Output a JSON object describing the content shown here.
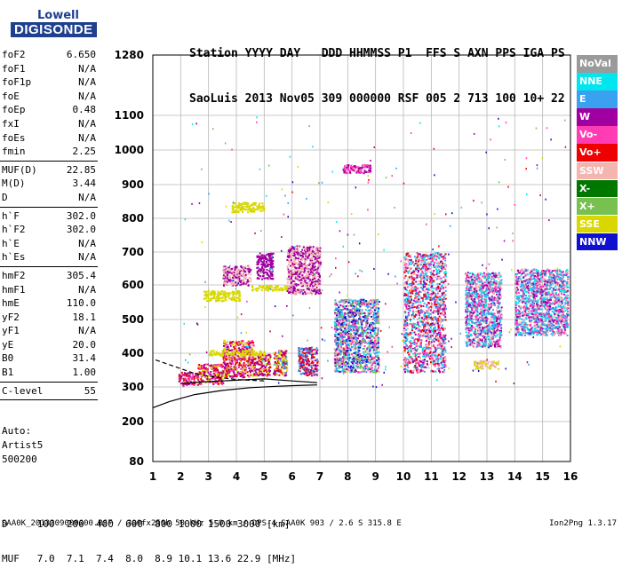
{
  "logo": {
    "top": "Lowell",
    "bottom": "DIGISONDE"
  },
  "header": {
    "line1": "Station YYYY DAY   DDD HHMMSS P1  FFS S AXN PPS IGA PS",
    "line2": "SaoLuis 2013 Nov05 309 000000 RSF 005 2 713 100 10+ 22"
  },
  "params": [
    {
      "name": "foF2",
      "value": "6.650"
    },
    {
      "name": "foF1",
      "value": "N/A"
    },
    {
      "name": "foF1p",
      "value": "N/A"
    },
    {
      "name": "foE",
      "value": "N/A"
    },
    {
      "name": "foEp",
      "value": "0.48"
    },
    {
      "name": "fxI",
      "value": "N/A"
    },
    {
      "name": "foEs",
      "value": "N/A"
    },
    {
      "name": "fmin",
      "value": "2.25"
    },
    {
      "sep": true
    },
    {
      "name": "MUF(D)",
      "value": "22.85"
    },
    {
      "name": "M(D)",
      "value": "3.44"
    },
    {
      "name": "D",
      "value": "N/A"
    },
    {
      "sep": true
    },
    {
      "name": "h`F",
      "value": "302.0"
    },
    {
      "name": "h`F2",
      "value": "302.0"
    },
    {
      "name": "h`E",
      "value": "N/A"
    },
    {
      "name": "h`Es",
      "value": "N/A"
    },
    {
      "sep": true
    },
    {
      "name": "hmF2",
      "value": "305.4"
    },
    {
      "name": "hmF1",
      "value": "N/A"
    },
    {
      "name": "hmE",
      "value": "110.0"
    },
    {
      "name": "yF2",
      "value": "18.1"
    },
    {
      "name": "yF1",
      "value": "N/A"
    },
    {
      "name": "yE",
      "value": "20.0"
    },
    {
      "name": "B0",
      "value": "31.4"
    },
    {
      "name": "B1",
      "value": "1.00"
    },
    {
      "sep": true
    },
    {
      "name": "C-level",
      "value": "55"
    },
    {
      "sep": true
    }
  ],
  "auto": {
    "line1": "Auto:",
    "line2": "Artist5",
    "line3": "500200"
  },
  "legend": [
    {
      "label": "NoVal",
      "color": "#9a9a9a"
    },
    {
      "label": "NNE",
      "color": "#00e5ee"
    },
    {
      "label": "E",
      "color": "#3aa0f0"
    },
    {
      "label": "W",
      "color": "#a000a0"
    },
    {
      "label": "Vo-",
      "color": "#ff3cb4"
    },
    {
      "label": "Vo+",
      "color": "#ee0000"
    },
    {
      "label": "SSW",
      "color": "#f4b4b0"
    },
    {
      "label": "X-",
      "color": "#007800"
    },
    {
      "label": "X+",
      "color": "#78c050"
    },
    {
      "label": "SSE",
      "color": "#d8d800"
    },
    {
      "label": "NNW",
      "color": "#1010d0"
    }
  ],
  "dmuf": {
    "d_line": "D     100  200  400  600  800 1000 1500 3000 [km]",
    "muf_line": "MUF   7.0  7.1  7.4  8.0  8.9 10.1 13.6 22.9 [MHz]"
  },
  "footer": {
    "left": "SAA0K_2013309000000.RSF / 300fx256h 50 kHz 5.0 km / DPS-4 SAA0K 903 / 2.6 S 315.8 E",
    "right": "Ion2Png 1.3.17"
  },
  "chart_data": {
    "type": "scatter",
    "title": "",
    "xlabel": "",
    "ylabel": "",
    "xlim": [
      1,
      16
    ],
    "ylim": [
      80,
      1280
    ],
    "y_scale": "virtual-height (non-linear)",
    "xticks": [
      1,
      2,
      3,
      4,
      5,
      6,
      7,
      8,
      9,
      10,
      11,
      12,
      13,
      14,
      15,
      16
    ],
    "yticks": [
      80,
      200,
      300,
      400,
      500,
      600,
      700,
      800,
      900,
      1000,
      1100,
      1280
    ],
    "grid": true,
    "legend_position": "right",
    "clusters": [
      {
        "x": [
          1.9,
          2.6
        ],
        "y": [
          305,
          345
        ],
        "colors": [
          "Vo+",
          "Vo-",
          "W"
        ]
      },
      {
        "x": [
          2.6,
          3.5
        ],
        "y": [
          310,
          370
        ],
        "colors": [
          "Vo+",
          "Vo-",
          "SSE",
          "W"
        ]
      },
      {
        "x": [
          3.5,
          4.6
        ],
        "y": [
          330,
          440
        ],
        "colors": [
          "W",
          "Vo+",
          "SSE",
          "Vo-"
        ]
      },
      {
        "x": [
          4.6,
          5.2
        ],
        "y": [
          335,
          400
        ],
        "colors": [
          "Vo+",
          "SSE",
          "W"
        ]
      },
      {
        "x": [
          5.3,
          5.8
        ],
        "y": [
          335,
          410
        ],
        "colors": [
          "Vo+",
          "E",
          "W",
          "SSE"
        ]
      },
      {
        "x": [
          6.2,
          6.9
        ],
        "y": [
          335,
          420
        ],
        "colors": [
          "Vo+",
          "E",
          "W"
        ]
      },
      {
        "x": [
          7.5,
          9.1
        ],
        "y": [
          345,
          560
        ],
        "colors": [
          "W",
          "E",
          "NNE",
          "Vo-",
          "X+",
          "SSW",
          "NNW"
        ]
      },
      {
        "x": [
          10.0,
          11.5
        ],
        "y": [
          345,
          700
        ],
        "colors": [
          "Vo-",
          "W",
          "E",
          "Vo+",
          "NNE",
          "SSW"
        ]
      },
      {
        "x": [
          12.2,
          13.5
        ],
        "y": [
          420,
          640
        ],
        "colors": [
          "Vo-",
          "W",
          "E",
          "NNE",
          "SSW"
        ]
      },
      {
        "x": [
          14.0,
          15.9
        ],
        "y": [
          455,
          650
        ],
        "colors": [
          "Vo-",
          "NNE",
          "E",
          "SSW",
          "W"
        ]
      },
      {
        "x": [
          2.8,
          4.1
        ],
        "y": [
          555,
          585
        ],
        "colors": [
          "SSE"
        ]
      },
      {
        "x": [
          4.5,
          5.9
        ],
        "y": [
          585,
          600
        ],
        "colors": [
          "SSE"
        ]
      },
      {
        "x": [
          3.0,
          5.0
        ],
        "y": [
          395,
          410
        ],
        "colors": [
          "SSE"
        ]
      },
      {
        "x": [
          3.5,
          4.5
        ],
        "y": [
          600,
          660
        ],
        "colors": [
          "W",
          "SSW"
        ]
      },
      {
        "x": [
          4.7,
          5.3
        ],
        "y": [
          620,
          700
        ],
        "colors": [
          "W"
        ]
      },
      {
        "x": [
          3.8,
          5.0
        ],
        "y": [
          820,
          850
        ],
        "colors": [
          "SSE"
        ]
      },
      {
        "x": [
          5.8,
          7.0
        ],
        "y": [
          575,
          720
        ],
        "colors": [
          "W",
          "SSW"
        ]
      },
      {
        "x": [
          7.8,
          8.8
        ],
        "y": [
          935,
          960
        ],
        "colors": [
          "W",
          "Vo-"
        ]
      },
      {
        "x": [
          12.5,
          13.4
        ],
        "y": [
          355,
          380
        ],
        "colors": [
          "SSW",
          "SSE"
        ]
      }
    ],
    "curves": [
      {
        "name": "",
        "style": "solid",
        "points": [
          [
            1.0,
            240
          ],
          [
            1.6,
            258
          ],
          [
            2.5,
            278
          ],
          [
            3.5,
            290
          ],
          [
            4.5,
            298
          ],
          [
            5.5,
            302
          ],
          [
            6.4,
            305
          ],
          [
            6.9,
            306
          ]
        ]
      },
      {
        "name": "",
        "style": "solid",
        "points": [
          [
            2.0,
            310
          ],
          [
            3.0,
            316
          ],
          [
            4.0,
            320
          ],
          [
            5.0,
            324
          ],
          [
            6.0,
            318
          ],
          [
            6.9,
            313
          ]
        ]
      },
      {
        "name": "",
        "style": "dashed",
        "points": [
          [
            1.1,
            380
          ],
          [
            1.8,
            360
          ],
          [
            2.5,
            340
          ],
          [
            3.2,
            330
          ],
          [
            4.0,
            322
          ],
          [
            5.0,
            318
          ]
        ]
      }
    ]
  }
}
